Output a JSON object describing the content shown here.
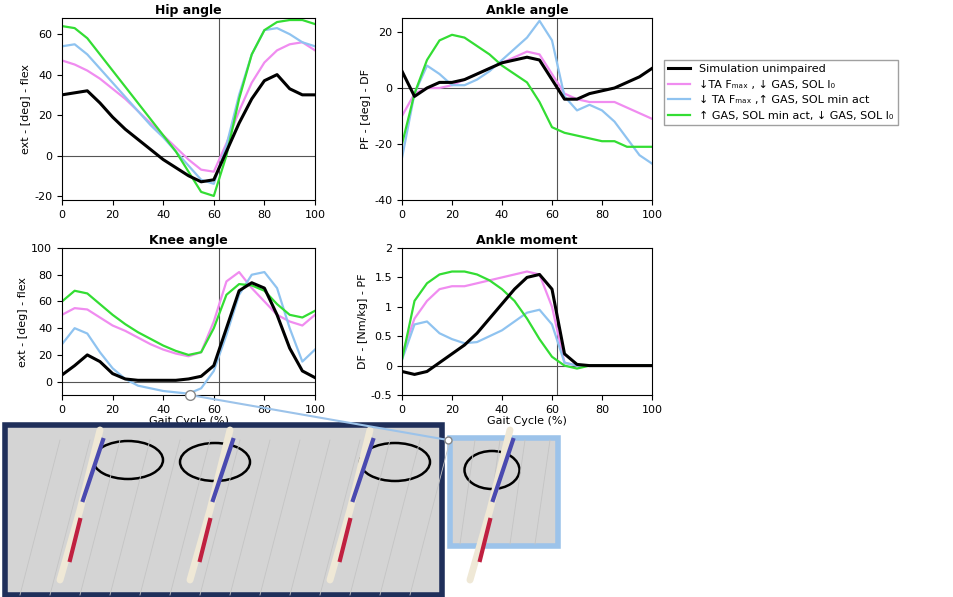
{
  "chart_data": [
    {
      "type": "line",
      "title": "Hip angle",
      "y_label": "ext - [deg] - flex",
      "x": [
        0,
        5,
        10,
        15,
        20,
        25,
        30,
        35,
        40,
        45,
        50,
        55,
        60,
        65,
        70,
        75,
        80,
        85,
        90,
        95,
        100
      ],
      "xlim": [
        0,
        100
      ],
      "xticks": [
        0,
        20,
        40,
        60,
        80,
        100
      ],
      "ylim": [
        -22,
        68
      ],
      "yticks": [
        -20,
        0,
        20,
        40,
        60
      ],
      "vlines": [
        62
      ],
      "hlines": [
        0
      ],
      "legend": "right",
      "series": [
        {
          "name": "Simulation unimpaired",
          "color": "#000000",
          "values": [
            30,
            31,
            32,
            26,
            19,
            13,
            8,
            3,
            -2,
            -6,
            -10,
            -13,
            -12,
            2,
            16,
            28,
            37,
            40,
            33,
            30,
            30
          ]
        },
        {
          "name": "↓TA Fₘₐₓ , ↓ GAS, SOL l₀",
          "color": "#f08cf0",
          "values": [
            47,
            45,
            42,
            38,
            33,
            28,
            22,
            16,
            10,
            4,
            -2,
            -7,
            -8,
            6,
            22,
            36,
            46,
            52,
            55,
            56,
            52
          ]
        },
        {
          "name": "↓ TA Fₘₐₓ ,↑ GAS, SOL min act",
          "color": "#8fc3f0",
          "values": [
            54,
            55,
            50,
            43,
            36,
            29,
            22,
            15,
            9,
            2,
            -5,
            -12,
            -14,
            5,
            30,
            50,
            62,
            63,
            60,
            56,
            54
          ]
        },
        {
          "name": "↑ GAS, SOL min act, ↓ GAS, SOL l₀",
          "color": "#33dd33",
          "values": [
            64,
            63,
            58,
            50,
            42,
            34,
            26,
            18,
            10,
            2,
            -8,
            -18,
            -20,
            0,
            28,
            50,
            62,
            66,
            67,
            67,
            65
          ]
        }
      ]
    },
    {
      "type": "line",
      "title": "Ankle angle",
      "y_label": "PF - [deg] - DF",
      "x": [
        0,
        5,
        10,
        15,
        20,
        25,
        30,
        35,
        40,
        45,
        50,
        55,
        60,
        65,
        70,
        75,
        80,
        85,
        90,
        95,
        100
      ],
      "xlim": [
        0,
        100
      ],
      "xticks": [
        0,
        20,
        40,
        60,
        80,
        100
      ],
      "ylim": [
        -40,
        25
      ],
      "yticks": [
        -40,
        -20,
        0,
        20
      ],
      "vlines": [
        62
      ],
      "hlines": [
        0
      ],
      "series": [
        {
          "name": "Simulation unimpaired",
          "color": "#000000",
          "values": [
            6,
            -3,
            0,
            2,
            2,
            3,
            5,
            7,
            9,
            10,
            11,
            10,
            3,
            -4,
            -4,
            -2,
            -1,
            0,
            2,
            4,
            7
          ]
        },
        {
          "name": "↓TA Fₘₐₓ , ↓ GAS, SOL l₀",
          "color": "#f08cf0",
          "values": [
            -10,
            -2,
            0,
            0,
            1,
            3,
            5,
            7,
            9,
            11,
            13,
            12,
            5,
            -2,
            -4,
            -5,
            -5,
            -5,
            -7,
            -9,
            -11
          ]
        },
        {
          "name": "↓ TA Fₘₐₓ ,↑ GAS, SOL min act",
          "color": "#8fc3f0",
          "values": [
            -25,
            -2,
            8,
            5,
            1,
            1,
            3,
            6,
            10,
            14,
            18,
            24,
            17,
            -3,
            -8,
            -6,
            -8,
            -12,
            -18,
            -24,
            -27
          ]
        },
        {
          "name": "↑ GAS, SOL min act, ↓ GAS, SOL l₀",
          "color": "#33dd33",
          "values": [
            -20,
            -2,
            10,
            17,
            19,
            18,
            15,
            12,
            8,
            5,
            2,
            -5,
            -14,
            -16,
            -17,
            -18,
            -19,
            -19,
            -21,
            -21,
            -21
          ]
        }
      ]
    },
    {
      "type": "line",
      "title": "Knee angle",
      "x_label": "Gait Cycle (%)",
      "y_label": "ext - [deg] - flex",
      "x": [
        0,
        5,
        10,
        15,
        20,
        25,
        30,
        35,
        40,
        45,
        50,
        55,
        60,
        65,
        70,
        75,
        80,
        85,
        90,
        95,
        100
      ],
      "xlim": [
        0,
        100
      ],
      "xticks": [
        0,
        20,
        40,
        60,
        80,
        100
      ],
      "ylim": [
        -10,
        100
      ],
      "yticks": [
        0,
        20,
        40,
        60,
        80,
        100
      ],
      "vlines": [
        62
      ],
      "hlines": [
        0
      ],
      "series": [
        {
          "name": "Simulation unimpaired",
          "color": "#000000",
          "values": [
            5,
            12,
            20,
            15,
            6,
            2,
            1,
            1,
            1,
            1,
            2,
            4,
            12,
            40,
            68,
            74,
            70,
            50,
            25,
            8,
            3
          ]
        },
        {
          "name": "↓TA Fₘₐₓ , ↓ GAS, SOL l₀",
          "color": "#f08cf0",
          "values": [
            50,
            55,
            54,
            48,
            42,
            38,
            33,
            28,
            24,
            21,
            19,
            22,
            45,
            75,
            82,
            70,
            60,
            50,
            45,
            42,
            50
          ]
        },
        {
          "name": "↓ TA Fₘₐₓ ,↑ GAS, SOL min act",
          "color": "#8fc3f0",
          "values": [
            28,
            40,
            36,
            22,
            10,
            2,
            -3,
            -5,
            -7,
            -8,
            -9,
            -5,
            8,
            35,
            65,
            80,
            82,
            70,
            40,
            15,
            24
          ]
        },
        {
          "name": "↑ GAS, SOL min act, ↓ GAS, SOL l₀",
          "color": "#33dd33",
          "values": [
            60,
            68,
            66,
            58,
            50,
            43,
            37,
            32,
            27,
            23,
            20,
            22,
            40,
            65,
            73,
            72,
            68,
            58,
            50,
            48,
            53
          ]
        }
      ]
    },
    {
      "type": "line",
      "title": "Ankle moment",
      "x_label": "Gait Cycle (%)",
      "y_label": "DF - [Nm/kg] - PF",
      "x": [
        0,
        5,
        10,
        15,
        20,
        25,
        30,
        35,
        40,
        45,
        50,
        55,
        60,
        65,
        70,
        75,
        80,
        85,
        90,
        95,
        100
      ],
      "xlim": [
        0,
        100
      ],
      "xticks": [
        0,
        20,
        40,
        60,
        80,
        100
      ],
      "ylim": [
        -0.5,
        2
      ],
      "yticks": [
        -0.5,
        0,
        0.5,
        1,
        1.5,
        2
      ],
      "vlines": [
        62
      ],
      "hlines": [
        0
      ],
      "series": [
        {
          "name": "Simulation unimpaired",
          "color": "#000000",
          "values": [
            -0.1,
            -0.15,
            -0.1,
            0.05,
            0.2,
            0.35,
            0.55,
            0.8,
            1.05,
            1.3,
            1.5,
            1.55,
            1.3,
            0.2,
            0.02,
            0,
            0,
            0,
            0,
            0,
            0
          ]
        },
        {
          "name": "↓TA Fₘₐₓ , ↓ GAS, SOL l₀",
          "color": "#f08cf0",
          "values": [
            0.2,
            0.8,
            1.1,
            1.3,
            1.35,
            1.35,
            1.4,
            1.45,
            1.5,
            1.55,
            1.6,
            1.55,
            1.0,
            0.05,
            0,
            0,
            0,
            0,
            0,
            0,
            0
          ]
        },
        {
          "name": "↓ TA Fₘₐₓ ,↑ GAS, SOL min act",
          "color": "#8fc3f0",
          "values": [
            0.1,
            0.7,
            0.75,
            0.55,
            0.45,
            0.38,
            0.4,
            0.5,
            0.6,
            0.75,
            0.9,
            0.95,
            0.7,
            0.05,
            0,
            0,
            0,
            0,
            0,
            0,
            0
          ]
        },
        {
          "name": "↑ GAS, SOL min act, ↓ GAS, SOL l₀",
          "color": "#33dd33",
          "values": [
            0.1,
            1.1,
            1.4,
            1.55,
            1.6,
            1.6,
            1.55,
            1.45,
            1.3,
            1.1,
            0.8,
            0.45,
            0.15,
            0,
            -0.05,
            0,
            0,
            0,
            0,
            0,
            0
          ]
        }
      ]
    }
  ]
}
